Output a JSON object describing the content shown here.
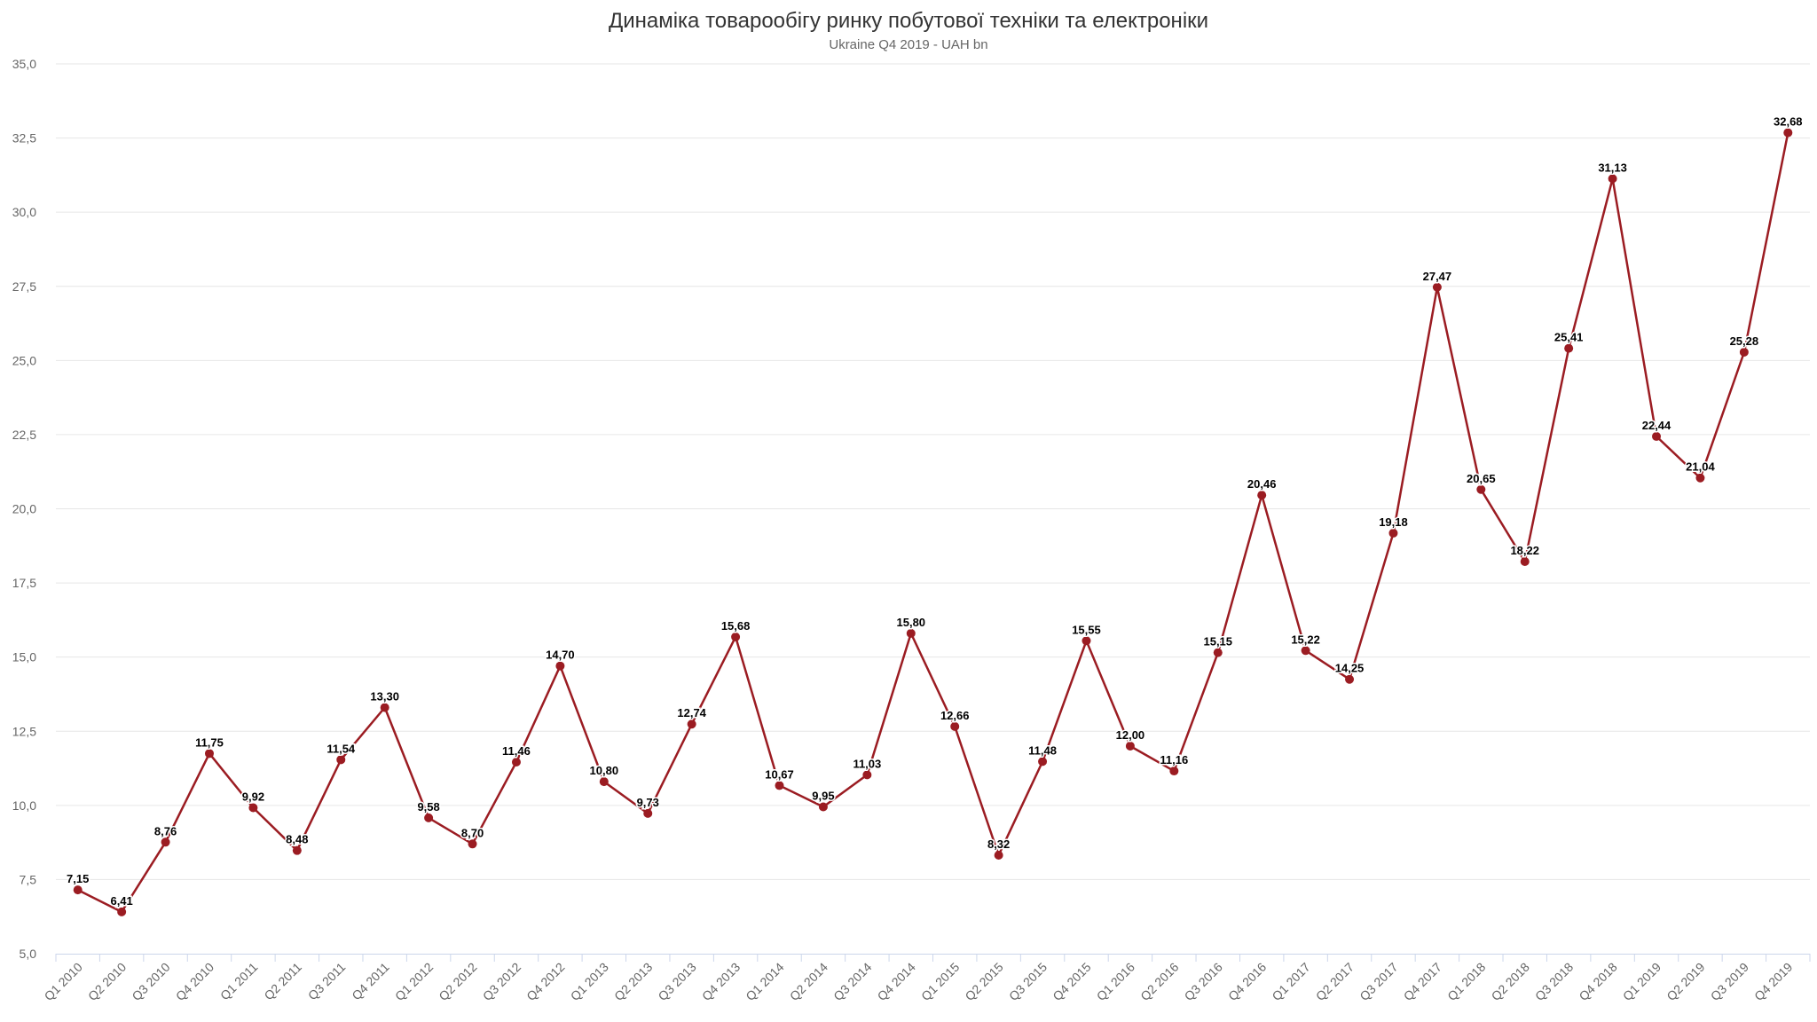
{
  "chart_data": {
    "type": "line",
    "title": "Динаміка товарообігу ринку побутової техніки та електроніки",
    "subtitle": "Ukraine Q4 2019 - UAH bn",
    "categories": [
      "Q1 2010",
      "Q2 2010",
      "Q3 2010",
      "Q4 2010",
      "Q1 2011",
      "Q2 2011",
      "Q3 2011",
      "Q4 2011",
      "Q1 2012",
      "Q2 2012",
      "Q3 2012",
      "Q4 2012",
      "Q1 2013",
      "Q2 2013",
      "Q3 2013",
      "Q4 2013",
      "Q1 2014",
      "Q2 2014",
      "Q3 2014",
      "Q4 2014",
      "Q1 2015",
      "Q2 2015",
      "Q3 2015",
      "Q4 2015",
      "Q1 2016",
      "Q2 2016",
      "Q3 2016",
      "Q4 2016",
      "Q1 2017",
      "Q2 2017",
      "Q3 2017",
      "Q4 2017",
      "Q1 2018",
      "Q2 2018",
      "Q3 2018",
      "Q4 2018",
      "Q1 2019",
      "Q2 2019",
      "Q3 2019",
      "Q4 2019"
    ],
    "series": [
      {
        "values": [
          7.15,
          6.41,
          8.76,
          11.75,
          9.92,
          8.48,
          11.54,
          13.3,
          9.58,
          8.7,
          11.46,
          14.7,
          10.8,
          9.73,
          12.74,
          15.68,
          10.67,
          9.95,
          11.03,
          15.8,
          12.66,
          8.32,
          11.48,
          15.55,
          12.0,
          11.16,
          15.15,
          20.46,
          15.22,
          14.25,
          19.18,
          27.47,
          20.65,
          18.22,
          25.41,
          31.13,
          22.44,
          21.04,
          25.28,
          32.68
        ],
        "labels": [
          "7,15",
          "6,41",
          "8,76",
          "11,75",
          "9,92",
          "8,48",
          "11,54",
          "13,30",
          "9,58",
          "8,70",
          "11,46",
          "14,70",
          "10,80",
          "9,73",
          "12,74",
          "15,68",
          "10,67",
          "9,95",
          "11,03",
          "15,80",
          "12,66",
          "8,32",
          "11,48",
          "15,55",
          "12,00",
          "11,16",
          "15,15",
          "20,46",
          "15,22",
          "14,25",
          "19,18",
          "27,47",
          "20,65",
          "18,22",
          "25,41",
          "31,13",
          "22,44",
          "21,04",
          "25,28",
          "32,68"
        ]
      }
    ],
    "yticks": [
      5.0,
      7.5,
      10.0,
      12.5,
      15.0,
      17.5,
      20.0,
      22.5,
      25.0,
      27.5,
      30.0,
      32.5,
      35.0
    ],
    "ytick_labels": [
      "5,0",
      "7,5",
      "10,0",
      "12,5",
      "15,0",
      "17,5",
      "20,0",
      "22,5",
      "25,0",
      "27,5",
      "30,0",
      "32,5",
      "35,0"
    ],
    "ylim": [
      5,
      35
    ],
    "grid": true,
    "legend": "none",
    "colors": {
      "line": "#9b1c22",
      "marker": "#9b1c22",
      "grid": "#e6e6e6",
      "axis": "#ccd6eb"
    }
  }
}
